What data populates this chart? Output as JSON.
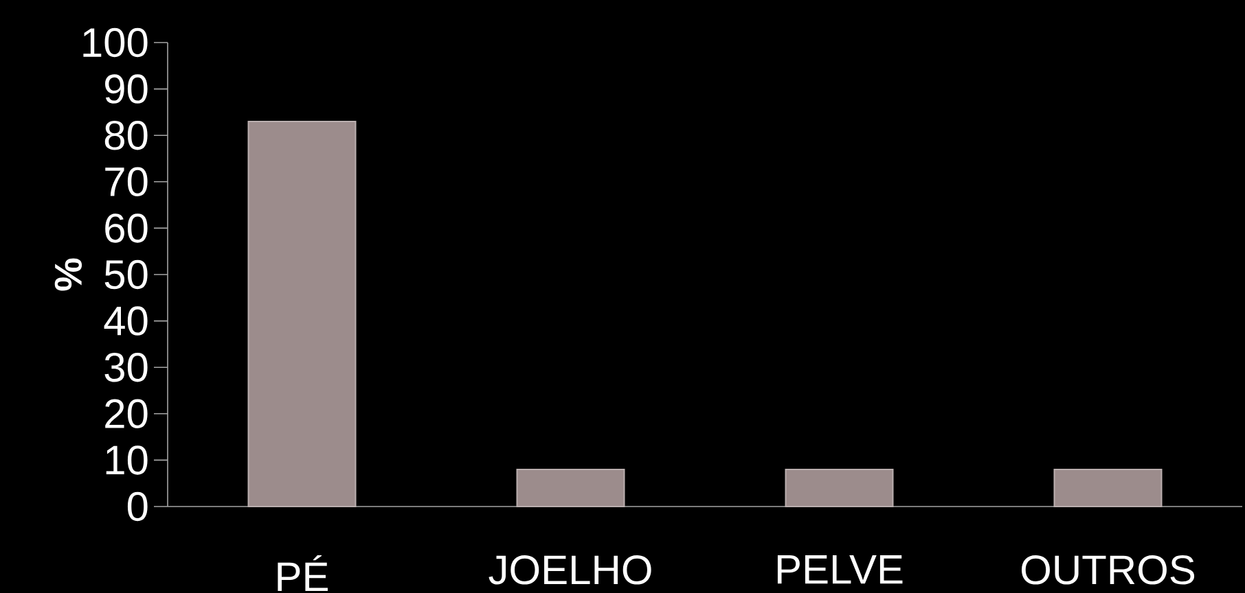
{
  "chart_data": {
    "type": "bar",
    "ylabel": "%",
    "categories": [
      "PÉ",
      "JOELHO",
      "PELVE",
      "OUTROS"
    ],
    "values": [
      83,
      8,
      8,
      8
    ],
    "color": "#9c8c8c",
    "ylim": [
      0,
      100
    ],
    "yticks": [
      0,
      10,
      20,
      30,
      40,
      50,
      60,
      70,
      80,
      90,
      100
    ]
  }
}
